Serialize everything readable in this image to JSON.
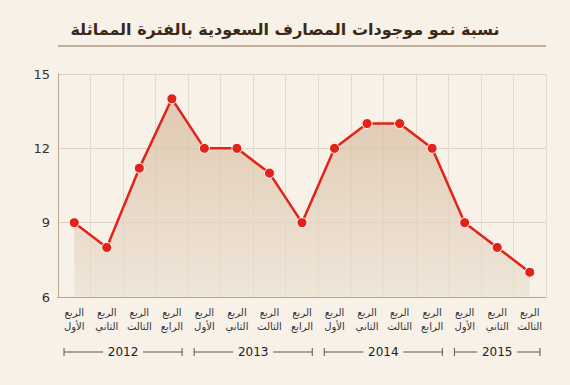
{
  "chart_data": {
    "type": "line",
    "title": "نسبة نمو موجودات المصارف السعودية بالفترة المماثلة",
    "categories": [
      "الربع الأول",
      "الربع الثاني",
      "الربع الثالث",
      "الربع الرابع",
      "الربع الأول",
      "الربع الثاني",
      "الربع الثالث",
      "الربع الرابع",
      "الربع الأول",
      "الربع الثاني",
      "الربع الثالث",
      "الربع الرابع",
      "الربع الأول",
      "الربع الثاني",
      "الربع الثالث"
    ],
    "values": [
      9,
      8,
      11.2,
      14,
      12,
      12,
      11,
      9,
      12,
      13,
      13,
      12,
      9,
      8,
      7
    ],
    "color": "#e2231a",
    "marker": "circle",
    "ylim": [
      6,
      15
    ],
    "yticks": [
      6,
      9,
      12,
      15
    ],
    "grid": true,
    "x_groups": [
      {
        "label": "2012",
        "size": 4
      },
      {
        "label": "2013",
        "size": 4
      },
      {
        "label": "2014",
        "size": 4
      },
      {
        "label": "2015",
        "size": 3
      }
    ]
  }
}
